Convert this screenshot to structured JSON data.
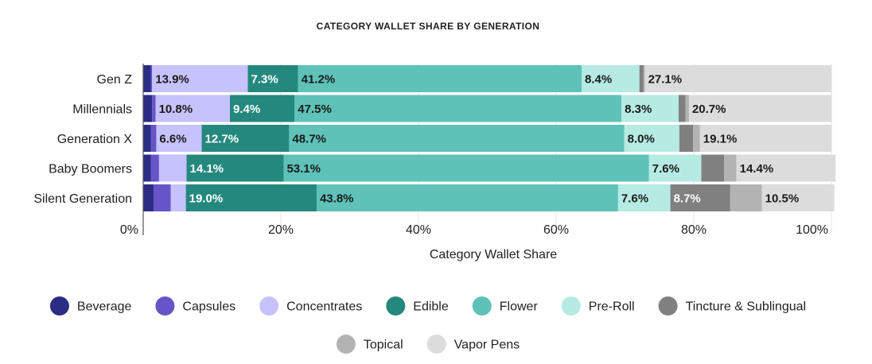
{
  "chart_data": {
    "type": "bar",
    "orientation": "horizontal",
    "stacked": true,
    "title": "CATEGORY WALLET SHARE BY GENERATION",
    "xlabel": "Category Wallet Share",
    "ylabel": "",
    "xlim": [
      0,
      100
    ],
    "x_ticks": [
      "0%",
      "20%",
      "40%",
      "60%",
      "80%",
      "100%"
    ],
    "grid": true,
    "legend_position": "bottom",
    "categories": [
      "Gen Z",
      "Millennials",
      "Generation X",
      "Baby Boomers",
      "Silent Generation"
    ],
    "series": [
      {
        "name": "Beverage",
        "color": "#2b2d84",
        "values": [
          1.1,
          1.3,
          1.1,
          1.1,
          1.5
        ],
        "labels": [
          "",
          "",
          "",
          "",
          ""
        ]
      },
      {
        "name": "Capsules",
        "color": "#6655c8",
        "values": [
          0.2,
          0.5,
          0.8,
          1.2,
          2.5
        ],
        "labels": [
          "",
          "",
          "",
          "",
          ""
        ]
      },
      {
        "name": "Concentrates",
        "color": "#c6c2fb",
        "values": [
          13.9,
          10.8,
          6.6,
          4.0,
          2.2
        ],
        "labels": [
          "13.9%",
          "10.8%",
          "6.6%",
          "",
          ""
        ]
      },
      {
        "name": "Edible",
        "color": "#25887e",
        "values": [
          7.3,
          9.4,
          12.7,
          14.1,
          19.0
        ],
        "labels": [
          "7.3%",
          "9.4%",
          "12.7%",
          "14.1%",
          "19.0%"
        ]
      },
      {
        "name": "Flower",
        "color": "#5ec2b9",
        "values": [
          41.2,
          47.5,
          48.7,
          53.1,
          43.8
        ],
        "labels": [
          "41.2%",
          "47.5%",
          "48.7%",
          "53.1%",
          "43.8%"
        ]
      },
      {
        "name": "Pre-Roll",
        "color": "#b5ebe3",
        "values": [
          8.4,
          8.3,
          8.0,
          7.6,
          7.6
        ],
        "labels": [
          "8.4%",
          "8.3%",
          "8.0%",
          "7.6%",
          "7.6%"
        ]
      },
      {
        "name": "Tincture & Sublingual",
        "color": "#808080",
        "values": [
          0.6,
          1.0,
          2.0,
          3.3,
          8.7
        ],
        "labels": [
          "",
          "",
          "",
          "",
          "8.7%"
        ]
      },
      {
        "name": "Topical",
        "color": "#b3b3b3",
        "values": [
          0.2,
          0.5,
          1.0,
          1.8,
          4.6
        ],
        "labels": [
          "",
          "",
          "",
          "",
          ""
        ]
      },
      {
        "name": "Vapor Pens",
        "color": "#dcdcdc",
        "values": [
          27.1,
          20.7,
          19.1,
          14.4,
          10.5
        ],
        "labels": [
          "27.1%",
          "20.7%",
          "19.1%",
          "14.4%",
          "10.5%"
        ]
      }
    ]
  }
}
